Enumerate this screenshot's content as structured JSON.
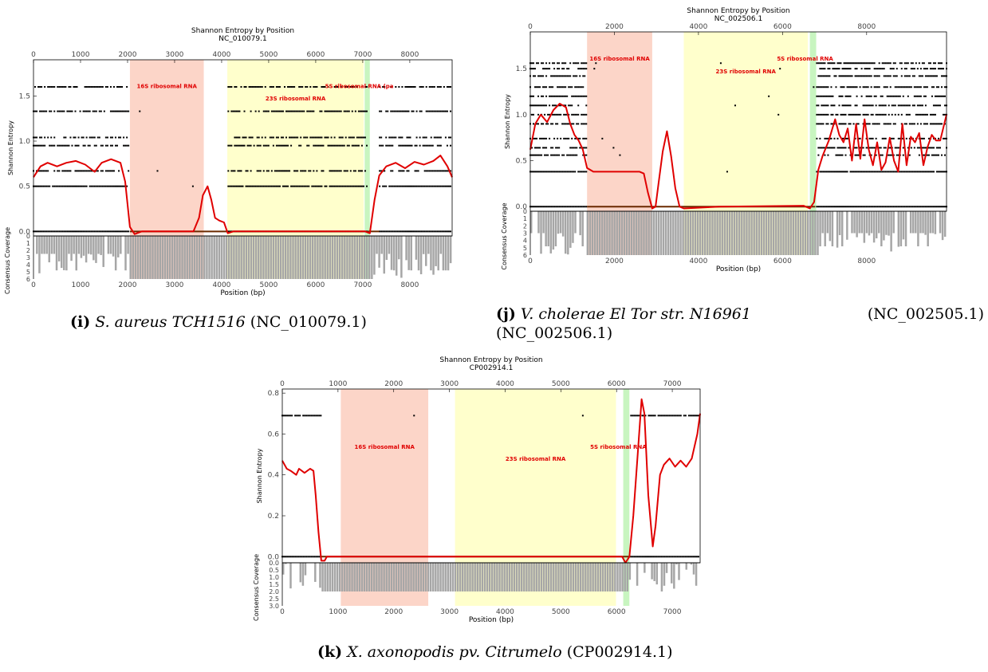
{
  "panels": [
    {
      "id": "i",
      "caption": {
        "letter": "(i)",
        "species": "S. aureus TCH1516",
        "accession": "(NC_010079.1)"
      },
      "chart": {
        "type": "line",
        "title": "Shannon Entropy by Position",
        "subtitle": "NC_010079.1",
        "xlabel": "Position (bp)",
        "ylabel": "Shannon Entropy",
        "coverage_label": "Consensus Coverage",
        "xlim": [
          0,
          8900
        ],
        "ylim": [
          -0.05,
          1.9
        ],
        "xticks": [
          0,
          1000,
          2000,
          3000,
          4000,
          5000,
          6000,
          7000,
          8000
        ],
        "yticks": [
          0.0,
          0.5,
          1.0,
          1.5
        ],
        "coverage_ylim": [
          0,
          6
        ],
        "coverage_ticks": [
          0,
          1,
          2,
          3,
          4,
          5,
          6
        ],
        "regions": [
          {
            "label": "16S ribosomal RNA",
            "start": 2050,
            "end": 3620,
            "color": "#fcd5c8"
          },
          {
            "label": "23S ribosomal RNA",
            "start": 4120,
            "end": 7020,
            "color": "#ffffcc"
          },
          {
            "label": "5S ribosomal RNA (pa",
            "start": 7040,
            "end": 7150,
            "color": "#c8f5c0"
          }
        ],
        "entropy_levels": [
          0.0,
          0.5,
          0.67,
          0.95,
          1.04,
          1.33,
          1.6
        ],
        "gaps": [
          [
            2050,
            4120
          ],
          [
            7100,
            7350
          ]
        ],
        "smoothed": [
          [
            0,
            0.6
          ],
          [
            150,
            0.72
          ],
          [
            300,
            0.76
          ],
          [
            500,
            0.72
          ],
          [
            700,
            0.76
          ],
          [
            900,
            0.78
          ],
          [
            1100,
            0.74
          ],
          [
            1300,
            0.66
          ],
          [
            1450,
            0.76
          ],
          [
            1650,
            0.8
          ],
          [
            1850,
            0.76
          ],
          [
            1950,
            0.55
          ],
          [
            2050,
            0.05
          ],
          [
            2150,
            -0.03
          ],
          [
            2300,
            0.0
          ],
          [
            3400,
            0.0
          ],
          [
            3520,
            0.15
          ],
          [
            3600,
            0.4
          ],
          [
            3700,
            0.5
          ],
          [
            3780,
            0.35
          ],
          [
            3860,
            0.15
          ],
          [
            3950,
            0.12
          ],
          [
            4050,
            0.1
          ],
          [
            4130,
            -0.02
          ],
          [
            4250,
            0.0
          ],
          [
            7050,
            0.0
          ],
          [
            7150,
            -0.02
          ],
          [
            7250,
            0.35
          ],
          [
            7350,
            0.62
          ],
          [
            7500,
            0.72
          ],
          [
            7700,
            0.76
          ],
          [
            7900,
            0.7
          ],
          [
            8100,
            0.77
          ],
          [
            8300,
            0.74
          ],
          [
            8500,
            0.78
          ],
          [
            8650,
            0.84
          ],
          [
            8800,
            0.72
          ],
          [
            8900,
            0.6
          ]
        ],
        "coverage": {
          "full": 6,
          "low": 2.5,
          "dense_from": 2000,
          "dense_to": 7200
        }
      }
    },
    {
      "id": "j",
      "caption": {
        "letter": "(j)",
        "species": "V. cholerae El Tor str. N16961",
        "accession": "(NC_002505.1)",
        "accession2": "(NC_002506.1)"
      },
      "chart": {
        "type": "line",
        "title": "Shannon Entropy by Position",
        "subtitle": "NC_002506.1",
        "xlabel": "Position (bp)",
        "ylabel": "Shannon Entropy",
        "coverage_label": "Consensus Coverage",
        "xlim": [
          0,
          9900
        ],
        "ylim": [
          -0.05,
          1.9
        ],
        "xticks": [
          0,
          2000,
          4000,
          6000,
          8000
        ],
        "yticks": [
          0.0,
          0.5,
          1.0,
          1.5
        ],
        "coverage_ylim": [
          0,
          6
        ],
        "coverage_ticks": [
          0,
          1,
          2,
          3,
          4,
          5,
          6
        ],
        "regions": [
          {
            "label": "16S ribosomal RNA",
            "start": 1350,
            "end": 2900,
            "color": "#fcd5c8"
          },
          {
            "label": "23S ribosomal RNA",
            "start": 3650,
            "end": 6600,
            "color": "#ffffcc"
          },
          {
            "label": "5S ribosomal RNA",
            "start": 6650,
            "end": 6800,
            "color": "#c8f5c0"
          }
        ],
        "entropy_levels": [
          0.0,
          0.38,
          0.56,
          0.64,
          0.74,
          0.9,
          1.0,
          1.1,
          1.2,
          1.3,
          1.42,
          1.5,
          1.56
        ],
        "gaps": [
          [
            1350,
            6780
          ]
        ],
        "smoothed": [
          [
            0,
            0.62
          ],
          [
            120,
            0.9
          ],
          [
            250,
            1.0
          ],
          [
            400,
            0.92
          ],
          [
            550,
            1.05
          ],
          [
            700,
            1.12
          ],
          [
            850,
            1.08
          ],
          [
            950,
            0.9
          ],
          [
            1050,
            0.78
          ],
          [
            1150,
            0.72
          ],
          [
            1250,
            0.62
          ],
          [
            1350,
            0.42
          ],
          [
            1500,
            0.38
          ],
          [
            1800,
            0.38
          ],
          [
            2200,
            0.38
          ],
          [
            2600,
            0.38
          ],
          [
            2700,
            0.36
          ],
          [
            2800,
            0.15
          ],
          [
            2900,
            -0.02
          ],
          [
            2980,
            0.0
          ],
          [
            3050,
            0.25
          ],
          [
            3150,
            0.6
          ],
          [
            3250,
            0.82
          ],
          [
            3350,
            0.55
          ],
          [
            3450,
            0.2
          ],
          [
            3550,
            0.0
          ],
          [
            3650,
            -0.02
          ],
          [
            4500,
            0.0
          ],
          [
            6500,
            0.01
          ],
          [
            6650,
            -0.02
          ],
          [
            6750,
            0.05
          ],
          [
            6850,
            0.4
          ],
          [
            6950,
            0.55
          ],
          [
            7100,
            0.72
          ],
          [
            7250,
            0.95
          ],
          [
            7350,
            0.78
          ],
          [
            7450,
            0.7
          ],
          [
            7550,
            0.85
          ],
          [
            7650,
            0.5
          ],
          [
            7750,
            0.9
          ],
          [
            7850,
            0.52
          ],
          [
            7950,
            0.95
          ],
          [
            8050,
            0.62
          ],
          [
            8150,
            0.45
          ],
          [
            8250,
            0.7
          ],
          [
            8350,
            0.4
          ],
          [
            8450,
            0.48
          ],
          [
            8550,
            0.75
          ],
          [
            8650,
            0.5
          ],
          [
            8750,
            0.38
          ],
          [
            8850,
            0.9
          ],
          [
            8950,
            0.45
          ],
          [
            9050,
            0.76
          ],
          [
            9150,
            0.7
          ],
          [
            9250,
            0.8
          ],
          [
            9350,
            0.45
          ],
          [
            9450,
            0.65
          ],
          [
            9550,
            0.78
          ],
          [
            9650,
            0.72
          ],
          [
            9750,
            0.72
          ],
          [
            9900,
            1.0
          ]
        ],
        "coverage": {
          "full": 6,
          "low": 3.0,
          "dense_from": 1300,
          "dense_to": 6850
        }
      }
    },
    {
      "id": "k",
      "caption": {
        "letter": "(k)",
        "species": "X. axonopodis pv. Citrumelo",
        "accession": "(CP002914.1)"
      },
      "chart": {
        "type": "line",
        "title": "Shannon Entropy by Position",
        "subtitle": "CP002914.1",
        "xlabel": "Position (bp)",
        "ylabel": "Shannon Entropy",
        "coverage_label": "Consensus Coverage",
        "xlim": [
          0,
          7500
        ],
        "ylim": [
          -0.03,
          0.82
        ],
        "xticks": [
          0,
          1000,
          2000,
          3000,
          4000,
          5000,
          6000,
          7000
        ],
        "yticks": [
          0.0,
          0.2,
          0.4,
          0.6,
          0.8
        ],
        "coverage_ylim": [
          0,
          3.0
        ],
        "coverage_ticks": [
          0.0,
          0.5,
          1.0,
          1.5,
          2.0,
          2.5,
          3.0
        ],
        "regions": [
          {
            "label": "16S ribosomal RNA",
            "start": 1050,
            "end": 2620,
            "color": "#fcd5c8"
          },
          {
            "label": "23S ribosomal RNA",
            "start": 3100,
            "end": 5990,
            "color": "#ffffcc"
          },
          {
            "label": "5S ribosomal RNA",
            "start": 6120,
            "end": 6230,
            "color": "#c8f5c0"
          }
        ],
        "entropy_levels": [
          0.0,
          0.69
        ],
        "gaps": [
          [
            700,
            6250
          ]
        ],
        "smoothed": [
          [
            0,
            0.47
          ],
          [
            80,
            0.43
          ],
          [
            150,
            0.42
          ],
          [
            250,
            0.4
          ],
          [
            300,
            0.43
          ],
          [
            400,
            0.41
          ],
          [
            500,
            0.43
          ],
          [
            560,
            0.42
          ],
          [
            600,
            0.3
          ],
          [
            650,
            0.12
          ],
          [
            700,
            -0.02
          ],
          [
            760,
            -0.02
          ],
          [
            800,
            0.0
          ],
          [
            6000,
            0.0
          ],
          [
            6100,
            0.0
          ],
          [
            6160,
            -0.03
          ],
          [
            6230,
            0.0
          ],
          [
            6300,
            0.2
          ],
          [
            6380,
            0.5
          ],
          [
            6450,
            0.77
          ],
          [
            6500,
            0.7
          ],
          [
            6570,
            0.3
          ],
          [
            6650,
            0.05
          ],
          [
            6700,
            0.15
          ],
          [
            6780,
            0.4
          ],
          [
            6850,
            0.45
          ],
          [
            6950,
            0.48
          ],
          [
            7050,
            0.44
          ],
          [
            7150,
            0.47
          ],
          [
            7250,
            0.44
          ],
          [
            7350,
            0.48
          ],
          [
            7450,
            0.6
          ],
          [
            7500,
            0.7
          ]
        ],
        "coverage": {
          "full": 2,
          "low": 0,
          "dense_from": 700,
          "dense_to": 6200
        }
      }
    }
  ],
  "chart_data": [
    {
      "type": "line",
      "title": "Shannon Entropy by Position",
      "subtitle": "NC_010079.1",
      "xlabel": "Position (bp)",
      "ylabel": "Shannon Entropy",
      "xlim": [
        0,
        8900
      ],
      "ylim": [
        -0.05,
        1.9
      ],
      "regions": [
        "16S ribosomal RNA",
        "23S ribosomal RNA",
        "5S ribosomal RNA (pa"
      ]
    },
    {
      "type": "line",
      "title": "Shannon Entropy by Position",
      "subtitle": "NC_002506.1",
      "xlabel": "Position (bp)",
      "ylabel": "Shannon Entropy",
      "xlim": [
        0,
        9900
      ],
      "ylim": [
        -0.05,
        1.9
      ],
      "regions": [
        "16S ribosomal RNA",
        "23S ribosomal RNA",
        "5S ribosomal RNA"
      ]
    },
    {
      "type": "line",
      "title": "Shannon Entropy by Position",
      "subtitle": "CP002914.1",
      "xlabel": "Position (bp)",
      "ylabel": "Shannon Entropy",
      "xlim": [
        0,
        7500
      ],
      "ylim": [
        -0.03,
        0.82
      ],
      "regions": [
        "16S ribosomal RNA",
        "23S ribosomal RNA",
        "5S ribosomal RNA"
      ]
    }
  ]
}
